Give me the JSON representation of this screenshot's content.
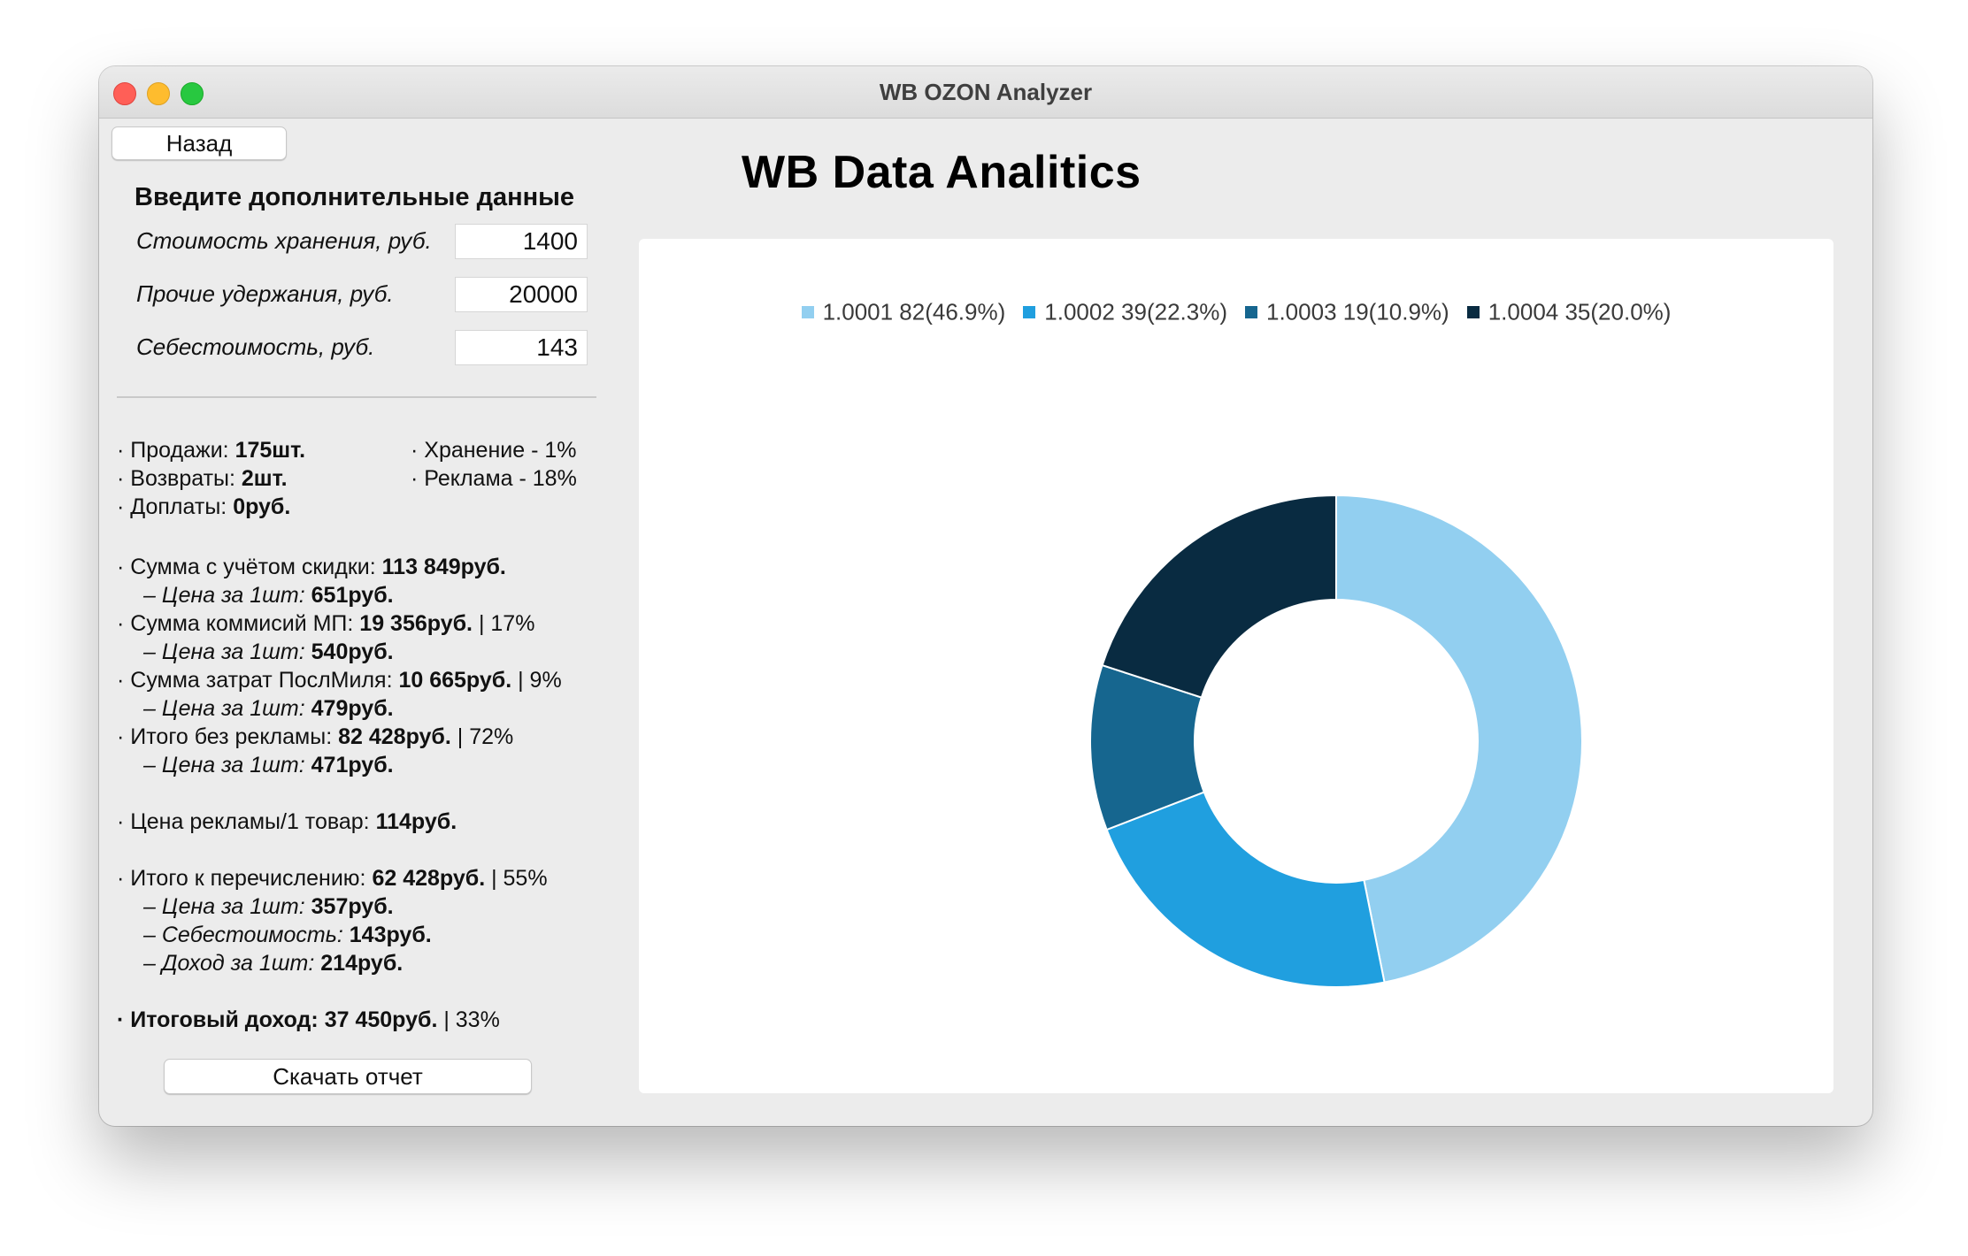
{
  "window": {
    "title": "WB OZON Analyzer"
  },
  "buttons": {
    "back": "Назад",
    "download": "Скачать отчет"
  },
  "form": {
    "title": "Введите дополнительные данные",
    "fields": [
      {
        "label": "Стоимость хранения, руб.",
        "value": "1400"
      },
      {
        "label": "Прочие удержания, руб.",
        "value": "20000"
      },
      {
        "label": "Себестоимость, руб.",
        "value": "143"
      }
    ]
  },
  "stats": {
    "sales_label": "· Продажи: ",
    "sales_value": "175шт.",
    "returns_label": "· Возвраты: ",
    "returns_value": "2шт.",
    "surcharges_label": "· Доплаты: ",
    "surcharges_value": "0руб.",
    "storage": "· Хранение - 1%",
    "ads": "· Реклама - 18%",
    "discount_sum_label": "· Сумма с учётом скидки: ",
    "discount_sum_value": "113 849руб.",
    "discount_unit_label": "– Цена за 1шт: ",
    "discount_unit_value": "651руб.",
    "commission_label": "· Сумма коммисий МП: ",
    "commission_value": "19 356руб.",
    "commission_pct": " | 17%",
    "commission_unit_label": "– Цена за 1шт: ",
    "commission_unit_value": "540руб.",
    "lastmile_label": "· Сумма затрат ПослМиля: ",
    "lastmile_value": "10 665руб.",
    "lastmile_pct": " | 9%",
    "lastmile_unit_label": "– Цена за 1шт: ",
    "lastmile_unit_value": "479руб.",
    "no_ads_label": "· Итого без рекламы: ",
    "no_ads_value": "82 428руб.",
    "no_ads_pct": " | 72%",
    "no_ads_unit_label": "– Цена за 1шт: ",
    "no_ads_unit_value": "471руб.",
    "ad_price_label": "· Цена рекламы/1 товар: ",
    "ad_price_value": "114руб.",
    "transfer_label": "· Итого к перечислению: ",
    "transfer_value": "62 428руб.",
    "transfer_pct": " | 55%",
    "transfer_unit_label": "– Цена за 1шт: ",
    "transfer_unit_value": "357руб.",
    "cost_label": "– Себестоимость: ",
    "cost_value": "143руб.",
    "income_unit_label": "– Доход за 1шт: ",
    "income_unit_value": "214руб.",
    "final_label": "· Итоговый доход: 37 450руб.",
    "final_pct": " | 33%"
  },
  "app_title": "WB Data Analitics",
  "chart_data": {
    "type": "pie",
    "style": "donut",
    "title": "",
    "legend_position": "top",
    "series": [
      {
        "name": "1.0001 82(46.9%)",
        "value": 82,
        "percent": 46.9,
        "color": "#92cff0"
      },
      {
        "name": "1.0002 39(22.3%)",
        "value": 39,
        "percent": 22.3,
        "color": "#209fdf"
      },
      {
        "name": "1.0003 19(10.9%)",
        "value": 19,
        "percent": 10.9,
        "color": "#16668f"
      },
      {
        "name": "1.0004 35(20.0%)",
        "value": 35,
        "percent": 20.0,
        "color": "#092b41"
      }
    ]
  }
}
